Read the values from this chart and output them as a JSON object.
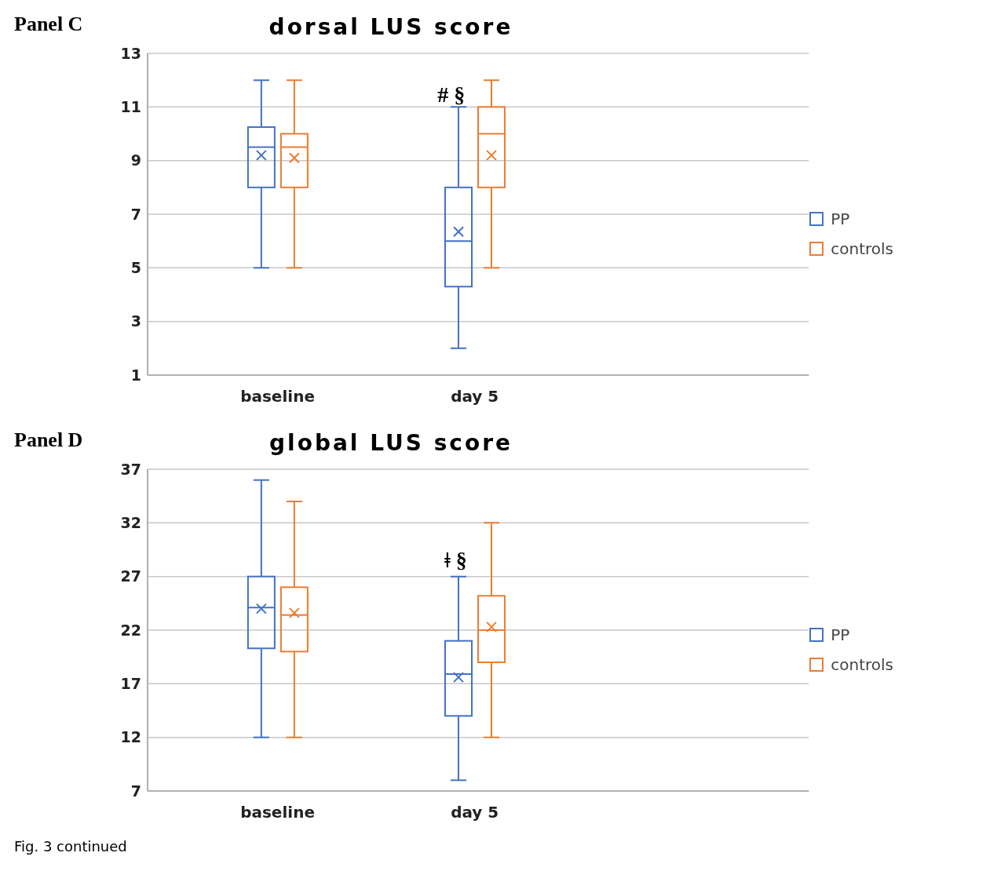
{
  "chart_data": [
    {
      "type": "box",
      "title": "dorsal LUS score",
      "annotations": [
        "Panel C",
        {
          "text": "# §",
          "x": "day 5",
          "y": 11
        }
      ],
      "categories": [
        "baseline",
        "day 5"
      ],
      "ylim": [
        1,
        13
      ],
      "yticks": [
        1,
        3,
        5,
        7,
        9,
        11,
        13
      ],
      "grid": "y",
      "legend": "right",
      "series": [
        {
          "name": "PP",
          "color": "#4472c4",
          "boxes": [
            {
              "low": 5,
              "q1": 8,
              "median": 9.5,
              "q3": 10.25,
              "high": 12,
              "mean": 9.2
            },
            {
              "low": 2,
              "q1": 4.3,
              "median": 6,
              "q3": 8,
              "high": 11,
              "mean": 6.35
            }
          ]
        },
        {
          "name": "controls",
          "color": "#ed7d31",
          "boxes": [
            {
              "low": 5,
              "q1": 8,
              "median": 9.5,
              "q3": 10,
              "high": 12,
              "mean": 9.1
            },
            {
              "low": 5,
              "q1": 8,
              "median": 10,
              "q3": 11,
              "high": 12,
              "mean": 9.2
            }
          ]
        }
      ]
    },
    {
      "type": "box",
      "title": "global LUS score",
      "annotations": [
        "Panel D",
        "ǂ §",
        "Fig. 3 continued"
      ],
      "categories": [
        "baseline",
        "day 5"
      ],
      "ylim": [
        7,
        37
      ],
      "yticks": [
        7,
        12,
        17,
        22,
        27,
        32,
        37
      ],
      "grid": "y",
      "legend": "right",
      "series": [
        {
          "name": "PP",
          "color": "#4472c4",
          "boxes": [
            {
              "low": 12,
              "q1": 20.3,
              "median": 24.1,
              "q3": 27,
              "high": 36,
              "mean": 24
            },
            {
              "low": 8,
              "q1": 14,
              "median": 17.9,
              "q3": 21,
              "high": 27,
              "mean": 17.6
            }
          ]
        },
        {
          "name": "controls",
          "color": "#ed7d31",
          "boxes": [
            {
              "low": 12,
              "q1": 20,
              "median": 23.4,
              "q3": 26,
              "high": 34,
              "mean": 23.6
            },
            {
              "low": 12,
              "q1": 19,
              "median": 22,
              "q3": 25.2,
              "high": 32,
              "mean": 22.3
            }
          ]
        }
      ]
    }
  ]
}
